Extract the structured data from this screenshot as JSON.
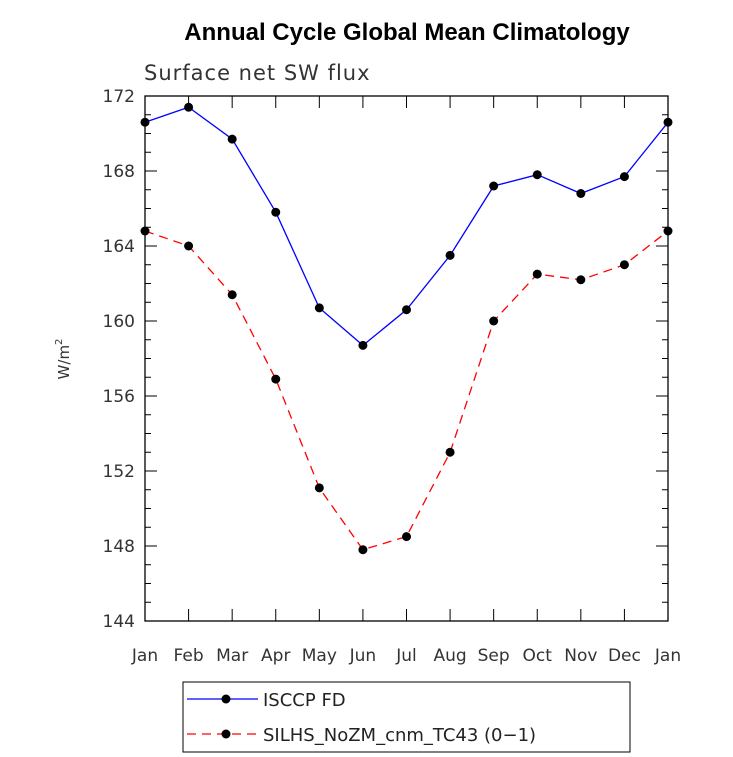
{
  "chart_data": {
    "type": "line",
    "title": "Annual Cycle Global Mean Climatology",
    "subtitle": "Surface net SW flux",
    "ylabel": "W/m",
    "ylabel_sup": "2",
    "xlabel": "",
    "categories": [
      "Jan",
      "Feb",
      "Mar",
      "Apr",
      "May",
      "Jun",
      "Jul",
      "Aug",
      "Sep",
      "Oct",
      "Nov",
      "Dec",
      "Jan"
    ],
    "ylim": [
      144,
      172
    ],
    "yticks": [
      "144",
      "148",
      "152",
      "156",
      "160",
      "164",
      "168",
      "172"
    ],
    "grid": false,
    "legend_position": "bottom",
    "series": [
      {
        "name": "ISCCP FD",
        "color": "#0000ff",
        "dash": "solid",
        "values": [
          170.6,
          171.4,
          169.7,
          165.8,
          160.7,
          158.7,
          160.6,
          163.5,
          167.2,
          167.8,
          166.8,
          167.7,
          170.6
        ]
      },
      {
        "name": "SILHS_NoZM_cnm_TC43 (0−1)",
        "color": "#ff0000",
        "dash": "dashed",
        "values": [
          164.8,
          164.0,
          161.4,
          156.9,
          151.1,
          147.8,
          148.5,
          153.0,
          160.0,
          162.5,
          162.2,
          163.0,
          164.8
        ]
      }
    ]
  }
}
